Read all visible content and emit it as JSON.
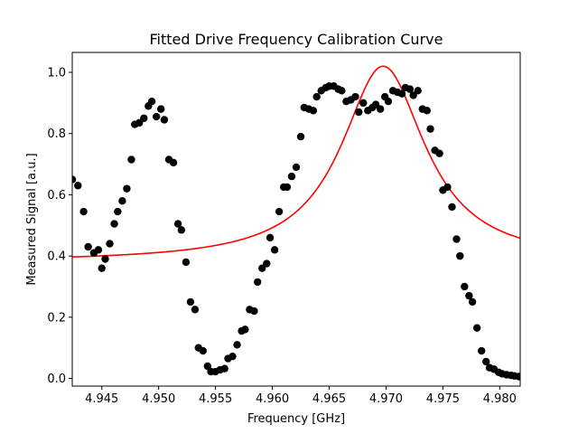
{
  "chart_data": {
    "type": "scatter",
    "title": "Fitted Drive Frequency Calibration Curve",
    "xlabel": "Frequency [GHz]",
    "ylabel": "Measured Signal [a.u.]",
    "xlim": [
      4.9424,
      4.9818
    ],
    "ylim": [
      -0.025,
      1.065
    ],
    "x_ticks": [
      4.945,
      4.95,
      4.955,
      4.96,
      4.965,
      4.97,
      4.975,
      4.98
    ],
    "x_tick_labels": [
      "4.945",
      "4.950",
      "4.955",
      "4.960",
      "4.965",
      "4.970",
      "4.975",
      "4.980"
    ],
    "y_ticks": [
      0.0,
      0.2,
      0.4,
      0.6,
      0.8,
      1.0
    ],
    "y_tick_labels": [
      "0.0",
      "0.2",
      "0.4",
      "0.6",
      "0.8",
      "1.0"
    ],
    "grid": false,
    "colors": {
      "points": "#000000",
      "fit": "#ff0000"
    },
    "points": {
      "x": [
        4.9424,
        4.9429,
        4.9434,
        4.9438,
        4.9443,
        4.9447,
        4.945,
        4.9453,
        4.9457,
        4.9461,
        4.9464,
        4.9468,
        4.9472,
        4.9476,
        4.9479,
        4.9483,
        4.9487,
        4.9491,
        4.9494,
        4.9498,
        4.9502,
        4.9505,
        4.9509,
        4.9513,
        4.9517,
        4.952,
        4.9524,
        4.9528,
        4.9532,
        4.9535,
        4.9539,
        4.9543,
        4.9546,
        4.955,
        4.9554,
        4.9558,
        4.9561,
        4.9565,
        4.9569,
        4.9573,
        4.9576,
        4.958,
        4.9584,
        4.9587,
        4.9591,
        4.9595,
        4.9598,
        4.9602,
        4.9606,
        4.961,
        4.9613,
        4.9617,
        4.9621,
        4.9625,
        4.9628,
        4.9632,
        4.9636,
        4.9639,
        4.9643,
        4.9647,
        4.965,
        4.9654,
        4.9658,
        4.9661,
        4.9665,
        4.9669,
        4.9673,
        4.9676,
        4.968,
        4.9684,
        4.9688,
        4.9691,
        4.9695,
        4.9699,
        4.9702,
        4.9706,
        4.971,
        4.9714,
        4.9717,
        4.9721,
        4.9724,
        4.9728,
        4.9732,
        4.9736,
        4.9739,
        4.9743,
        4.9747,
        4.975,
        4.9754,
        4.9758,
        4.9762,
        4.9765,
        4.9769,
        4.9773,
        4.9776,
        4.978,
        4.9784,
        4.9788,
        4.9791,
        4.9795,
        4.9799,
        4.9802,
        4.9806,
        4.981,
        4.9813,
        4.9817
      ],
      "y": [
        0.65,
        0.63,
        0.545,
        0.43,
        0.41,
        0.42,
        0.36,
        0.39,
        0.44,
        0.505,
        0.545,
        0.58,
        0.62,
        0.715,
        0.83,
        0.835,
        0.85,
        0.89,
        0.905,
        0.855,
        0.88,
        0.845,
        0.715,
        0.705,
        0.505,
        0.485,
        0.38,
        0.25,
        0.225,
        0.1,
        0.09,
        0.04,
        0.022,
        0.022,
        0.028,
        0.032,
        0.065,
        0.072,
        0.11,
        0.155,
        0.16,
        0.225,
        0.22,
        0.315,
        0.36,
        0.375,
        0.46,
        0.42,
        0.545,
        0.625,
        0.625,
        0.66,
        0.69,
        0.79,
        0.885,
        0.88,
        0.875,
        0.92,
        0.94,
        0.95,
        0.955,
        0.955,
        0.945,
        0.94,
        0.905,
        0.91,
        0.92,
        0.87,
        0.9,
        0.875,
        0.885,
        0.895,
        0.88,
        0.92,
        0.905,
        0.94,
        0.935,
        0.93,
        0.95,
        0.945,
        0.925,
        0.94,
        0.88,
        0.875,
        0.815,
        0.745,
        0.735,
        0.615,
        0.625,
        0.56,
        0.455,
        0.4,
        0.3,
        0.27,
        0.25,
        0.165,
        0.09,
        0.055,
        0.035,
        0.03,
        0.02,
        0.015,
        0.012,
        0.01,
        0.008,
        0.006
      ]
    },
    "fit": {
      "model": "lorentzian",
      "x0": 4.96975,
      "gamma": 0.0045,
      "amplitude": 0.64,
      "offset": 0.38
    }
  }
}
